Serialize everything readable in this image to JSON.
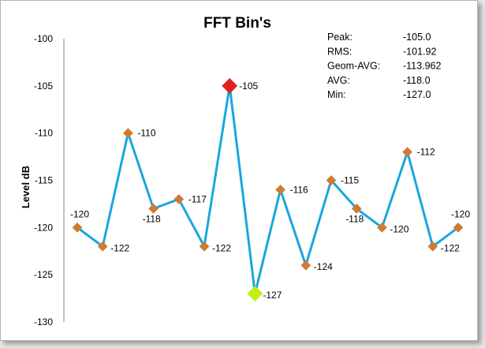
{
  "chart_data": {
    "type": "line",
    "title": "FFT Bin's",
    "xlabel": "",
    "ylabel": "Level  dB",
    "ylim": [
      -130,
      -100
    ],
    "yticks": [
      -100,
      -105,
      -110,
      -115,
      -120,
      -125,
      -130
    ],
    "grid": false,
    "legend": "none",
    "series": [
      {
        "values": [
          -120,
          -122,
          -110,
          -118,
          -117,
          -122,
          -105,
          -127,
          -116,
          -124,
          -115,
          -118,
          -120,
          -112,
          -122,
          -120
        ],
        "labels": [
          "-120",
          "-122",
          "-110",
          "-118",
          "-117",
          "-122",
          "-105",
          "-127",
          "-116",
          "-124",
          "-115",
          "-118",
          "-120",
          "-112",
          "-122",
          "-120"
        ],
        "color": "#1aa6dd",
        "marker_color": "#d07a33"
      }
    ],
    "highlights": {
      "max": {
        "index": 6,
        "color": "#e0201f"
      },
      "min": {
        "index": 7,
        "color": "#c2ee1a"
      }
    },
    "stats": [
      {
        "label": "Peak:",
        "value": "-105.0"
      },
      {
        "label": "RMS:",
        "value": "-101.92"
      },
      {
        "label": "Geom-AVG:",
        "value": "-113.962"
      },
      {
        "label": "AVG:",
        "value": "-118.0"
      },
      {
        "label": "Min:",
        "value": "-127.0"
      }
    ]
  }
}
